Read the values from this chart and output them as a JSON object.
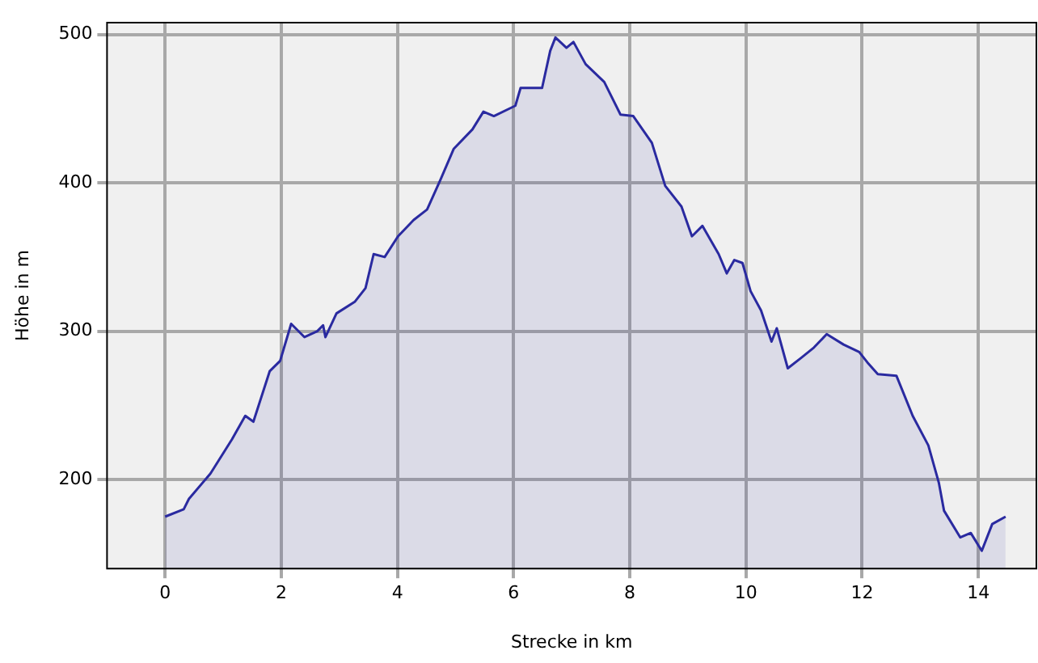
{
  "chart_data": {
    "type": "area",
    "xlabel": "Strecke in km",
    "ylabel": "Höhe in m",
    "x": [
      0,
      0.32,
      0.41,
      0.78,
      1.15,
      1.38,
      1.52,
      1.8,
      1.98,
      2.17,
      2.4,
      2.62,
      2.72,
      2.76,
      2.95,
      3.27,
      3.45,
      3.59,
      3.78,
      4.01,
      4.28,
      4.51,
      4.74,
      4.97,
      5.29,
      5.48,
      5.66,
      6.03,
      6.12,
      6.49,
      6.63,
      6.72,
      6.91,
      7.03,
      7.24,
      7.56,
      7.84,
      8.06,
      8.38,
      8.61,
      8.89,
      9.07,
      9.25,
      9.53,
      9.67,
      9.8,
      9.94,
      10.08,
      10.26,
      10.44,
      10.53,
      10.72,
      10.95,
      11.17,
      11.39,
      11.68,
      11.95,
      12.09,
      12.27,
      12.59,
      12.87,
      13.14,
      13.32,
      13.41,
      13.69,
      13.87,
      14.06,
      14.24,
      14.47
    ],
    "series": [
      {
        "color": "#2a2aa0",
        "values": [
          175,
          180,
          187,
          204,
          227,
          243,
          239,
          273,
          280,
          305,
          296,
          300,
          304,
          296,
          312,
          320,
          329,
          352,
          350,
          364,
          375,
          382,
          402,
          423,
          436,
          448,
          445,
          452,
          464,
          464,
          489,
          498,
          491,
          495,
          480,
          468,
          446,
          445,
          427,
          398,
          384,
          364,
          371,
          352,
          339,
          348,
          346,
          327,
          314,
          293,
          302,
          275,
          282,
          289,
          298,
          291,
          286,
          279,
          271,
          270,
          243,
          223,
          198,
          179,
          161,
          164,
          152,
          170,
          175
        ]
      }
    ],
    "xlim": [
      -1,
      15
    ],
    "xticks": [
      0,
      2,
      4,
      6,
      8,
      10,
      12,
      14
    ],
    "ylim": [
      140,
      508
    ],
    "yticks": [
      200,
      300,
      400,
      500
    ],
    "grid": true,
    "legend": false
  }
}
